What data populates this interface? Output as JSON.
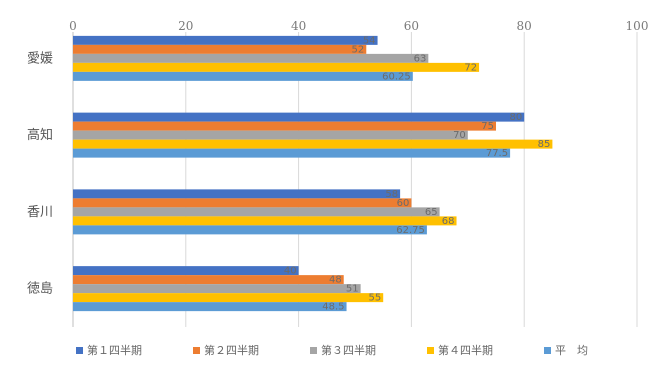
{
  "chart_data": {
    "type": "bar",
    "orientation": "horizontal",
    "title": "",
    "xlabel": "",
    "ylabel": "",
    "categories": [
      "徳島",
      "香川",
      "高知",
      "愛媛"
    ],
    "series": [
      {
        "name": "第１四半期",
        "color": "#4472C4",
        "values": [
          40,
          58,
          80,
          54
        ]
      },
      {
        "name": "第２四半期",
        "color": "#ED7D31",
        "values": [
          48,
          60,
          75,
          52
        ]
      },
      {
        "name": "第３四半期",
        "color": "#A5A5A5",
        "values": [
          51,
          65,
          70,
          63
        ]
      },
      {
        "name": "第４四半期",
        "color": "#FFC000",
        "values": [
          55,
          68,
          85,
          72
        ]
      },
      {
        "name": "平　均",
        "color": "#5B9BD5",
        "values": [
          48.5,
          62.75,
          77.5,
          60.25
        ]
      }
    ],
    "data_labels": [
      [
        "40",
        "48",
        "51",
        "55",
        "48.5"
      ],
      [
        "58",
        "60",
        "65",
        "68",
        "62.75"
      ],
      [
        "80",
        "75",
        "70",
        "85",
        "77.5"
      ],
      [
        "54",
        "52",
        "63",
        "72",
        "60.25"
      ]
    ],
    "xlim": [
      0,
      100
    ],
    "x_ticks": [
      "0",
      "20",
      "40",
      "60",
      "80",
      "100"
    ],
    "grid": true,
    "legend_position": "bottom"
  }
}
